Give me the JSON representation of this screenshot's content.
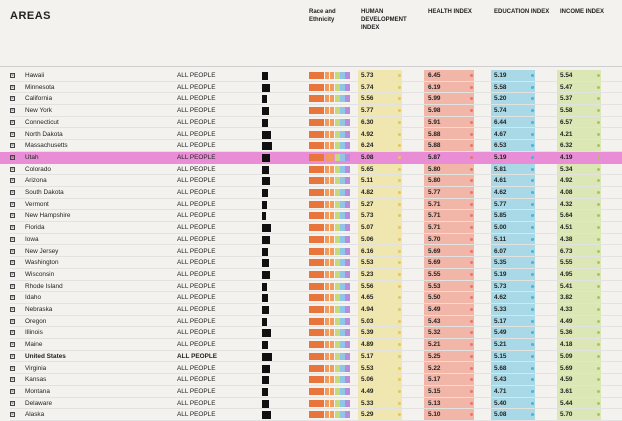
{
  "title": "AREAS",
  "headers": {
    "race": "Race and Ethnicity",
    "hdi": "HUMAN DEVELOPMENT INDEX",
    "health": "HEALTH INDEX",
    "education": "EDUCATION INDEX",
    "income": "INCOME INDEX"
  },
  "colors": {
    "highlight": "#e98ed6",
    "hdi_band": "#f0e7b0",
    "health_band": "#f1b6a8",
    "education_band": "#a9d9e6",
    "income_band": "#dbe8b6",
    "race_palette": [
      "#e8763c",
      "#e8763c",
      "#e8763c",
      "#f29b5e",
      "#f29b5e",
      "#c8d97a",
      "#8fc6e8",
      "#b88cd8"
    ]
  },
  "rows": [
    {
      "name": "Hawaii",
      "group": "ALL PEOPLE",
      "hdi": "5.73",
      "health": "6.45",
      "education": "5.19",
      "income": "5.54"
    },
    {
      "name": "Minnesota",
      "group": "ALL PEOPLE",
      "hdi": "5.74",
      "health": "6.19",
      "education": "5.58",
      "income": "5.47"
    },
    {
      "name": "California",
      "group": "ALL PEOPLE",
      "hdi": "5.56",
      "health": "5.99",
      "education": "5.20",
      "income": "5.37"
    },
    {
      "name": "New York",
      "group": "ALL PEOPLE",
      "hdi": "5.77",
      "health": "5.98",
      "education": "5.74",
      "income": "5.58"
    },
    {
      "name": "Connecticut",
      "group": "ALL PEOPLE",
      "hdi": "6.30",
      "health": "5.91",
      "education": "6.44",
      "income": "6.57"
    },
    {
      "name": "North Dakota",
      "group": "ALL PEOPLE",
      "hdi": "4.92",
      "health": "5.88",
      "education": "4.67",
      "income": "4.21"
    },
    {
      "name": "Massachusetts",
      "group": "ALL PEOPLE",
      "hdi": "6.24",
      "health": "5.88",
      "education": "6.53",
      "income": "6.32"
    },
    {
      "name": "Utah",
      "group": "ALL PEOPLE",
      "hdi": "5.08",
      "health": "5.87",
      "education": "5.19",
      "income": "4.19",
      "highlight": true
    },
    {
      "name": "Colorado",
      "group": "ALL PEOPLE",
      "hdi": "5.65",
      "health": "5.80",
      "education": "5.81",
      "income": "5.34"
    },
    {
      "name": "Arizona",
      "group": "ALL PEOPLE",
      "hdi": "5.11",
      "health": "5.80",
      "education": "4.61",
      "income": "4.92"
    },
    {
      "name": "South Dakota",
      "group": "ALL PEOPLE",
      "hdi": "4.82",
      "health": "5.77",
      "education": "4.62",
      "income": "4.08"
    },
    {
      "name": "Vermont",
      "group": "ALL PEOPLE",
      "hdi": "5.27",
      "health": "5.71",
      "education": "5.77",
      "income": "4.32"
    },
    {
      "name": "New Hampshire",
      "group": "ALL PEOPLE",
      "hdi": "5.73",
      "health": "5.71",
      "education": "5.85",
      "income": "5.64"
    },
    {
      "name": "Florida",
      "group": "ALL PEOPLE",
      "hdi": "5.07",
      "health": "5.71",
      "education": "5.00",
      "income": "4.51"
    },
    {
      "name": "Iowa",
      "group": "ALL PEOPLE",
      "hdi": "5.06",
      "health": "5.70",
      "education": "5.11",
      "income": "4.38"
    },
    {
      "name": "New Jersey",
      "group": "ALL PEOPLE",
      "hdi": "6.16",
      "health": "5.69",
      "education": "6.07",
      "income": "6.73"
    },
    {
      "name": "Washington",
      "group": "ALL PEOPLE",
      "hdi": "5.53",
      "health": "5.69",
      "education": "5.35",
      "income": "5.55"
    },
    {
      "name": "Wisconsin",
      "group": "ALL PEOPLE",
      "hdi": "5.23",
      "health": "5.55",
      "education": "5.19",
      "income": "4.95"
    },
    {
      "name": "Rhode Island",
      "group": "ALL PEOPLE",
      "hdi": "5.56",
      "health": "5.53",
      "education": "5.73",
      "income": "5.41"
    },
    {
      "name": "Idaho",
      "group": "ALL PEOPLE",
      "hdi": "4.65",
      "health": "5.50",
      "education": "4.62",
      "income": "3.82"
    },
    {
      "name": "Nebraska",
      "group": "ALL PEOPLE",
      "hdi": "4.94",
      "health": "5.49",
      "education": "5.33",
      "income": "4.33"
    },
    {
      "name": "Oregon",
      "group": "ALL PEOPLE",
      "hdi": "5.03",
      "health": "5.43",
      "education": "5.17",
      "income": "4.49"
    },
    {
      "name": "Illinois",
      "group": "ALL PEOPLE",
      "hdi": "5.39",
      "health": "5.32",
      "education": "5.49",
      "income": "5.36"
    },
    {
      "name": "Maine",
      "group": "ALL PEOPLE",
      "hdi": "4.89",
      "health": "5.21",
      "education": "5.21",
      "income": "4.18"
    },
    {
      "name": "United States",
      "group": "ALL PEOPLE",
      "hdi": "5.17",
      "health": "5.25",
      "education": "5.15",
      "income": "5.09",
      "bold": true
    },
    {
      "name": "Virginia",
      "group": "ALL PEOPLE",
      "hdi": "5.53",
      "health": "5.22",
      "education": "5.68",
      "income": "5.69"
    },
    {
      "name": "Kansas",
      "group": "ALL PEOPLE",
      "hdi": "5.06",
      "health": "5.17",
      "education": "5.43",
      "income": "4.59"
    },
    {
      "name": "Montana",
      "group": "ALL PEOPLE",
      "hdi": "4.49",
      "health": "5.15",
      "education": "4.71",
      "income": "3.61"
    },
    {
      "name": "Delaware",
      "group": "ALL PEOPLE",
      "hdi": "5.33",
      "health": "5.13",
      "education": "5.40",
      "income": "5.44"
    },
    {
      "name": "Alaska",
      "group": "ALL PEOPLE",
      "hdi": "5.29",
      "health": "5.10",
      "education": "5.08",
      "income": "5.70"
    }
  ]
}
